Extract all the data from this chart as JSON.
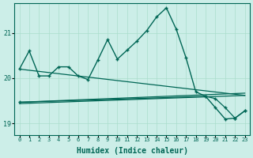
{
  "bg_color": "#cceee8",
  "grid_color": "#aaddcc",
  "line_color": "#006655",
  "xlabel": "Humidex (Indice chaleur)",
  "xlabel_fontsize": 7,
  "xlim": [
    -0.5,
    23.5
  ],
  "ylim": [
    18.75,
    21.65
  ],
  "yticks": [
    19,
    20,
    21
  ],
  "xticks": [
    0,
    1,
    2,
    3,
    4,
    5,
    6,
    7,
    8,
    9,
    10,
    11,
    12,
    13,
    14,
    15,
    16,
    17,
    18,
    19,
    20,
    21,
    22,
    23
  ],
  "jagged1_x": [
    0,
    1,
    2,
    3,
    4,
    5,
    6,
    7,
    8,
    9,
    10,
    11,
    12,
    13,
    14,
    15,
    16,
    17,
    18,
    19,
    20,
    21,
    22,
    23
  ],
  "jagged1_y": [
    20.2,
    20.6,
    20.05,
    20.05,
    20.25,
    20.25,
    20.05,
    19.97,
    20.4,
    20.85,
    20.42,
    20.62,
    20.82,
    21.05,
    21.35,
    21.55,
    21.08,
    20.45,
    19.7,
    19.6,
    19.35,
    19.1,
    19.12,
    19.28
  ],
  "trend1_x": [
    0,
    23
  ],
  "trend1_y": [
    20.2,
    19.62
  ],
  "trend2_x": [
    0,
    23
  ],
  "trend2_y": [
    19.47,
    19.67
  ],
  "trend3_x": [
    0,
    23
  ],
  "trend3_y": [
    19.44,
    19.62
  ],
  "flat1_x": [
    0,
    19,
    20,
    21,
    22,
    23
  ],
  "flat1_y": [
    19.47,
    19.6,
    19.55,
    19.35,
    19.12,
    19.28
  ]
}
